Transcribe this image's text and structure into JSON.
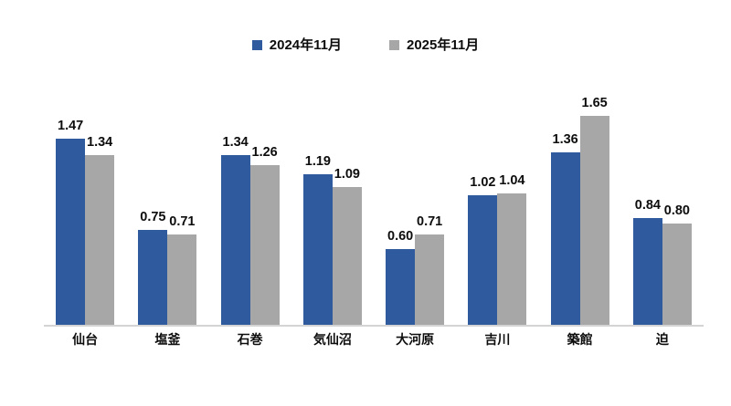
{
  "chart_data": {
    "type": "bar",
    "title": "",
    "categories": [
      "仙台",
      "塩釜",
      "石巻",
      "気仙沼",
      "大河原",
      "吉川",
      "築館",
      "迫"
    ],
    "series": [
      {
        "key": "2024-11",
        "name": "2024年11月",
        "color": "#2f5a9e",
        "values": [
          1.47,
          0.75,
          1.34,
          1.19,
          0.6,
          1.02,
          1.36,
          0.84
        ]
      },
      {
        "key": "2025-11",
        "name": "2025年11月",
        "color": "#a7a7a7",
        "values": [
          1.34,
          0.71,
          1.26,
          1.09,
          0.71,
          1.04,
          1.65,
          0.8
        ]
      }
    ],
    "value_label_format": "0.00",
    "legend_position": "top-center",
    "grid": false,
    "y_axis_visible": false,
    "x_axis_line_color": "#d4d4d4",
    "text_color": "#0d0d0d",
    "background_color": "#ffffff",
    "ylim": [
      0,
      1.95
    ]
  }
}
